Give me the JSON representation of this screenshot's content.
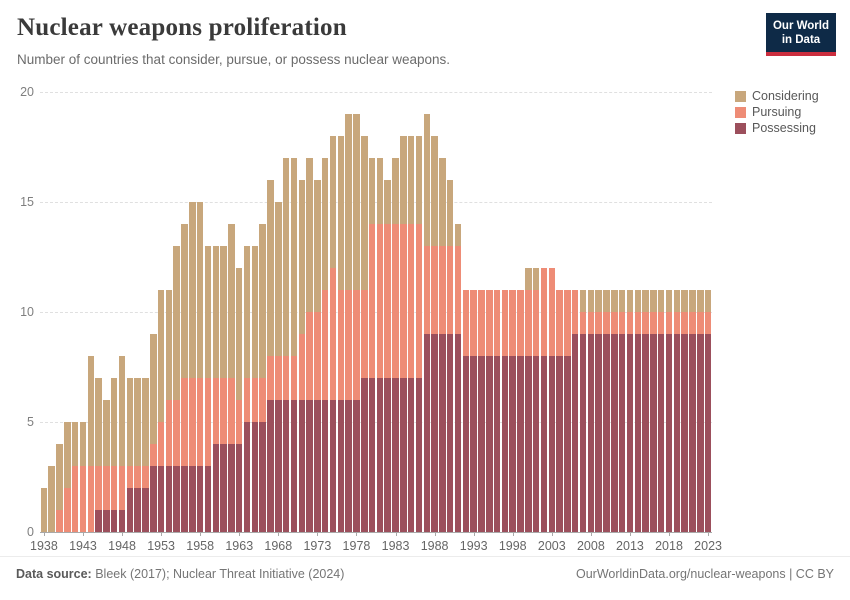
{
  "header": {
    "title": "Nuclear weapons proliferation",
    "subtitle": "Number of countries that consider, pursue, or possess nuclear weapons."
  },
  "logo": {
    "line1": "Our World",
    "line2": "in Data",
    "bg": "#0e2a47",
    "stripe": "#cb2d3e"
  },
  "legend": {
    "items": [
      {
        "label": "Considering",
        "color": "#c8a77c"
      },
      {
        "label": "Pursuing",
        "color": "#ee8c76"
      },
      {
        "label": "Possessing",
        "color": "#9c4f5c"
      }
    ]
  },
  "chart_data": {
    "type": "bar",
    "stacked": true,
    "grid": "dashed-horizontal",
    "legend_position": "top-right",
    "ylim": [
      0,
      20
    ],
    "yticks": [
      0,
      5,
      10,
      15,
      20
    ],
    "xticks": [
      1938,
      1943,
      1948,
      1953,
      1958,
      1963,
      1968,
      1973,
      1978,
      1983,
      1988,
      1993,
      1998,
      2003,
      2008,
      2013,
      2018,
      2023
    ],
    "years": [
      1938,
      1939,
      1940,
      1941,
      1942,
      1943,
      1944,
      1945,
      1946,
      1947,
      1948,
      1949,
      1950,
      1951,
      1952,
      1953,
      1954,
      1955,
      1956,
      1957,
      1958,
      1959,
      1960,
      1961,
      1962,
      1963,
      1964,
      1965,
      1966,
      1967,
      1968,
      1969,
      1970,
      1971,
      1972,
      1973,
      1974,
      1975,
      1976,
      1977,
      1978,
      1979,
      1980,
      1981,
      1982,
      1983,
      1984,
      1985,
      1986,
      1987,
      1988,
      1989,
      1990,
      1991,
      1992,
      1993,
      1994,
      1995,
      1996,
      1997,
      1998,
      1999,
      2000,
      2001,
      2002,
      2003,
      2004,
      2005,
      2006,
      2007,
      2008,
      2009,
      2010,
      2011,
      2012,
      2013,
      2014,
      2015,
      2016,
      2017,
      2018,
      2019,
      2020,
      2021,
      2022,
      2023
    ],
    "series": [
      {
        "name": "Possessing",
        "color": "#9c4f5c",
        "values": [
          0,
          0,
          0,
          0,
          0,
          0,
          0,
          1,
          1,
          1,
          1,
          2,
          2,
          2,
          3,
          3,
          3,
          3,
          3,
          3,
          3,
          3,
          4,
          4,
          4,
          4,
          5,
          5,
          5,
          6,
          6,
          6,
          6,
          6,
          6,
          6,
          6,
          6,
          6,
          6,
          6,
          7,
          7,
          7,
          7,
          7,
          7,
          7,
          7,
          9,
          9,
          9,
          9,
          9,
          8,
          8,
          8,
          8,
          8,
          8,
          8,
          8,
          8,
          8,
          8,
          8,
          8,
          8,
          9,
          9,
          9,
          9,
          9,
          9,
          9,
          9,
          9,
          9,
          9,
          9,
          9,
          9,
          9,
          9,
          9,
          9
        ]
      },
      {
        "name": "Pursuing",
        "color": "#ee8c76",
        "values": [
          0,
          0,
          1,
          2,
          3,
          3,
          3,
          2,
          2,
          2,
          2,
          1,
          1,
          1,
          1,
          2,
          3,
          3,
          4,
          4,
          4,
          4,
          3,
          3,
          3,
          2,
          2,
          2,
          2,
          2,
          2,
          2,
          2,
          3,
          4,
          4,
          5,
          6,
          5,
          5,
          5,
          4,
          7,
          7,
          7,
          7,
          7,
          7,
          7,
          4,
          4,
          4,
          4,
          4,
          3,
          3,
          3,
          3,
          3,
          3,
          3,
          3,
          3,
          3,
          4,
          4,
          3,
          3,
          2,
          1,
          1,
          1,
          1,
          1,
          1,
          1,
          1,
          1,
          1,
          1,
          1,
          1,
          1,
          1,
          1,
          1
        ]
      },
      {
        "name": "Considering",
        "color": "#c8a77c",
        "values": [
          2,
          3,
          3,
          3,
          2,
          2,
          5,
          4,
          3,
          4,
          5,
          4,
          4,
          4,
          5,
          6,
          5,
          7,
          7,
          8,
          8,
          6,
          6,
          6,
          7,
          6,
          6,
          6,
          7,
          8,
          7,
          9,
          9,
          7,
          7,
          6,
          6,
          6,
          7,
          8,
          8,
          7,
          3,
          3,
          2,
          3,
          4,
          4,
          4,
          6,
          5,
          4,
          3,
          1,
          0,
          0,
          0,
          0,
          0,
          0,
          0,
          0,
          1,
          1,
          0,
          0,
          0,
          0,
          0,
          1,
          1,
          1,
          1,
          1,
          1,
          1,
          1,
          1,
          1,
          1,
          1,
          1,
          1,
          1,
          1,
          1
        ]
      }
    ]
  },
  "footer": {
    "source_label": "Data source:",
    "source_text": " Bleek (2017); Nuclear Threat Initiative (2024)",
    "right_text": "OurWorldinData.org/nuclear-weapons | CC BY"
  }
}
